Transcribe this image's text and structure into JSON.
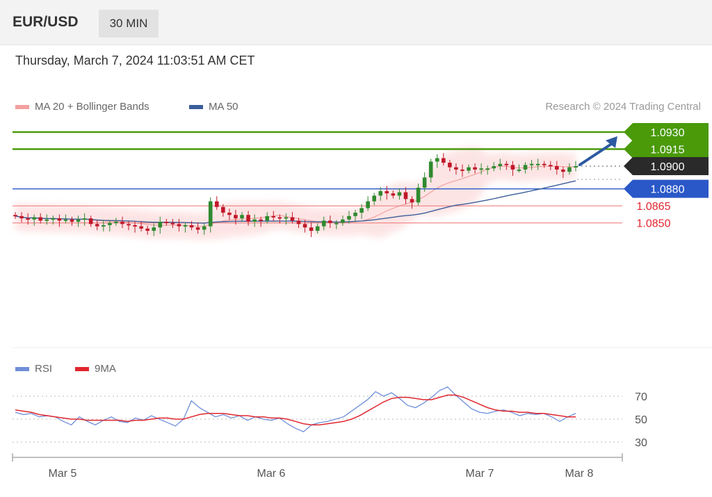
{
  "header": {
    "pair": "EUR/USD",
    "timeframe": "30 MIN",
    "datetime": "Thursday, March 7, 2024 11:03:51 AM CET"
  },
  "legend": {
    "bb_label": "MA 20 + Bollinger Bands",
    "ma50_label": "MA 50",
    "credit": "Research © 2024 Trading Central",
    "rsi_label": "RSI",
    "rsi_ma_label": "9MA"
  },
  "colors": {
    "bullish": "#2f8a2f",
    "bearish": "#c0182a",
    "bb_fill": "#fde0e0",
    "bb_line": "#f3a0a0",
    "ma50": "#3a5e9a",
    "resistance": "#4a9a0a",
    "pivot": "#2a58c8",
    "support": "#f08080",
    "current": "#2a2a2a",
    "arrow": "#2c5aa0",
    "rsi": "#6f8fd8",
    "rsi_ma": "#e0262e"
  },
  "chart_data": {
    "type": "candlestick",
    "x_axis": {
      "ticks": [
        "Mar 5",
        "Mar 6",
        "Mar 7",
        "Mar 8"
      ]
    },
    "price_levels": [
      {
        "label": "1.0930",
        "value": 1.093,
        "role": "resistance"
      },
      {
        "label": "1.0915",
        "value": 1.0915,
        "role": "resistance"
      },
      {
        "label": "1.0900",
        "value": 1.09,
        "role": "current"
      },
      {
        "label": "1.0880",
        "value": 1.088,
        "role": "pivot"
      },
      {
        "label": "1.0865",
        "value": 1.0865,
        "role": "support"
      },
      {
        "label": "1.0850",
        "value": 1.085,
        "role": "support"
      }
    ],
    "target_arrow": {
      "from": 1.09,
      "to": 1.093
    },
    "ohlc_series": [
      1.0856,
      1.0854,
      1.0853,
      1.0855,
      1.0852,
      1.0853,
      1.0854,
      1.0852,
      1.0853,
      1.0851,
      1.0853,
      1.0854,
      1.0849,
      1.0847,
      1.0848,
      1.085,
      1.0851,
      1.0849,
      1.0848,
      1.0847,
      1.0845,
      1.0843,
      1.0846,
      1.0851,
      1.085,
      1.0849,
      1.0847,
      1.0848,
      1.0846,
      1.0844,
      1.0847,
      1.0869,
      1.0864,
      1.0859,
      1.0857,
      1.0854,
      1.0857,
      1.0851,
      1.0853,
      1.0852,
      1.0856,
      1.0855,
      1.0854,
      1.0855,
      1.0852,
      1.0849,
      1.0846,
      1.0843,
      1.0847,
      1.0852,
      1.085,
      1.085,
      1.0853,
      1.0856,
      1.0859,
      1.0863,
      1.0869,
      1.0874,
      1.0878,
      1.0876,
      1.0874,
      1.0877,
      1.0871,
      1.0868,
      1.0881,
      1.089,
      1.0904,
      1.0907,
      1.0903,
      1.0899,
      1.0897,
      1.0896,
      1.0899,
      1.0897,
      1.0898,
      1.0898,
      1.09,
      1.0902,
      1.0901,
      1.0897,
      1.0897,
      1.0901,
      1.0902,
      1.0902,
      1.0901,
      1.09,
      1.0897,
      1.0895,
      1.0899,
      1.09
    ],
    "rsi": {
      "levels": [
        70,
        50,
        30
      ],
      "series": [
        56,
        54,
        55,
        52,
        53,
        52,
        48,
        45,
        52,
        48,
        45,
        49,
        52,
        48,
        47,
        51,
        49,
        53,
        50,
        47,
        44,
        50,
        66,
        60,
        56,
        52,
        54,
        51,
        53,
        49,
        52,
        50,
        49,
        51,
        46,
        42,
        39,
        45,
        47,
        48,
        50,
        52,
        57,
        62,
        67,
        74,
        70,
        73,
        68,
        62,
        60,
        64,
        69,
        75,
        78,
        71,
        65,
        59,
        56,
        55,
        57,
        58,
        56,
        53,
        55,
        54,
        55,
        52,
        48,
        52,
        55
      ],
      "ma9_series": [
        58,
        57,
        56,
        54,
        53,
        52,
        51,
        50,
        50,
        49,
        49,
        49,
        49,
        49,
        48,
        49,
        49,
        50,
        51,
        51,
        50,
        50,
        52,
        54,
        55,
        55,
        55,
        54,
        53,
        53,
        52,
        52,
        51,
        51,
        50,
        48,
        46,
        45,
        45,
        46,
        47,
        48,
        50,
        53,
        57,
        61,
        65,
        68,
        69,
        69,
        68,
        67,
        67,
        69,
        71,
        71,
        69,
        66,
        63,
        60,
        58,
        57,
        57,
        56,
        56,
        55,
        55,
        54,
        53,
        52,
        52
      ]
    }
  }
}
